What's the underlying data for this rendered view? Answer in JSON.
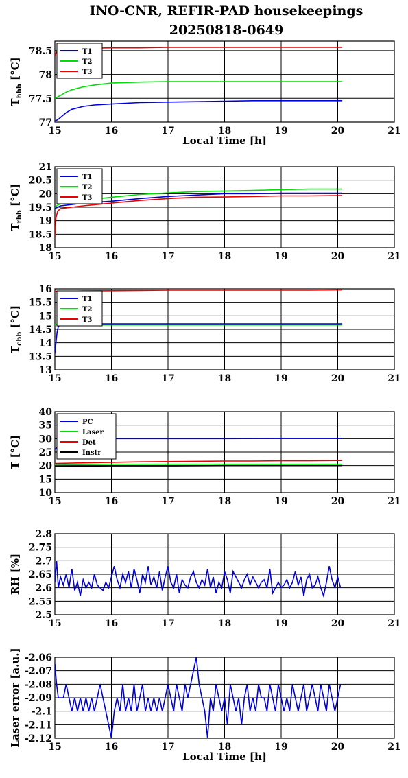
{
  "title_line1": "INO-CNR, REFIR-PAD housekeepings",
  "title_line2": "20250818-0649",
  "chart_data": [
    {
      "type": "line",
      "ylabel": "T",
      "ylabel_sub": "hbb",
      "ylabel_unit": " [°C]",
      "xlabel": "Local Time [h]",
      "xlim": [
        15,
        21
      ],
      "xticks": [
        15,
        16,
        17,
        18,
        19,
        20,
        21
      ],
      "ylim": [
        77,
        78.7
      ],
      "yticks": [
        "77",
        "77.5",
        "78",
        "78.5"
      ],
      "grid": true,
      "legend": "top-left",
      "series": [
        {
          "name": "T1",
          "color": "#0000dd",
          "x": [
            15,
            15.05,
            15.1,
            15.2,
            15.3,
            15.5,
            15.7,
            16,
            16.5,
            17,
            17.5,
            18,
            18.5,
            19,
            19.5,
            20,
            20.08
          ],
          "y": [
            77.02,
            77.05,
            77.1,
            77.2,
            77.27,
            77.33,
            77.36,
            77.38,
            77.41,
            77.42,
            77.43,
            77.44,
            77.45,
            77.45,
            77.45,
            77.45,
            77.45
          ]
        },
        {
          "name": "T2",
          "color": "#00dd00",
          "x": [
            15,
            15.1,
            15.2,
            15.3,
            15.5,
            15.7,
            16,
            16.5,
            17,
            17.5,
            18,
            18.5,
            19,
            19.5,
            20,
            20.08
          ],
          "y": [
            77.5,
            77.56,
            77.63,
            77.68,
            77.74,
            77.78,
            77.82,
            77.84,
            77.85,
            77.85,
            77.85,
            77.85,
            77.85,
            77.85,
            77.85,
            77.85
          ]
        },
        {
          "name": "T3",
          "color": "#ee0000",
          "x": [
            15,
            15.02,
            15.05,
            15.1,
            15.3,
            15.5,
            16,
            16.5,
            17,
            17.5,
            18,
            18.5,
            19,
            19.5,
            20,
            20.08
          ],
          "y": [
            78.38,
            78.45,
            78.5,
            78.52,
            78.54,
            78.55,
            78.56,
            78.56,
            78.57,
            78.57,
            78.57,
            78.57,
            78.57,
            78.57,
            78.57,
            78.57
          ]
        }
      ]
    },
    {
      "type": "line",
      "ylabel": "T",
      "ylabel_sub": "rbb",
      "ylabel_unit": " [°C]",
      "xlabel": "",
      "xlim": [
        15,
        21
      ],
      "xticks": [
        15,
        16,
        17,
        18,
        19,
        20,
        21
      ],
      "ylim": [
        18,
        21
      ],
      "yticks": [
        "18",
        "18.5",
        "19",
        "19.5",
        "20",
        "20.5",
        "21"
      ],
      "grid": true,
      "legend": "top-left",
      "series": [
        {
          "name": "T1",
          "color": "#0000dd",
          "x": [
            15,
            15.05,
            15.1,
            15.3,
            15.5,
            16,
            16.5,
            17,
            17.5,
            18,
            18.5,
            19,
            19.5,
            20,
            20.08
          ],
          "y": [
            19.45,
            19.5,
            19.55,
            19.6,
            19.65,
            19.72,
            19.82,
            19.9,
            19.95,
            20.0,
            20.0,
            20.02,
            20.02,
            20.02,
            20.02
          ]
        },
        {
          "name": "T2",
          "color": "#00dd00",
          "x": [
            15,
            15.05,
            15.1,
            15.3,
            15.5,
            16,
            16.5,
            17,
            17.5,
            18,
            18.5,
            19,
            19.5,
            20,
            20.08
          ],
          "y": [
            19.5,
            19.58,
            19.62,
            19.68,
            19.75,
            19.87,
            19.97,
            20.03,
            20.08,
            20.1,
            20.12,
            20.15,
            20.17,
            20.17,
            20.17
          ]
        },
        {
          "name": "T3",
          "color": "#ee0000",
          "x": [
            15,
            15.02,
            15.05,
            15.1,
            15.3,
            15.5,
            16,
            16.5,
            17,
            17.5,
            18,
            18.5,
            19,
            19.5,
            20,
            20.08
          ],
          "y": [
            18.4,
            19.1,
            19.35,
            19.45,
            19.5,
            19.55,
            19.65,
            19.75,
            19.82,
            19.87,
            19.88,
            19.9,
            19.92,
            19.92,
            19.93,
            19.93
          ]
        }
      ]
    },
    {
      "type": "line",
      "ylabel": "T",
      "ylabel_sub": "cbb",
      "ylabel_unit": " [°C]",
      "xlabel": "",
      "xlim": [
        15,
        21
      ],
      "xticks": [
        15,
        16,
        17,
        18,
        19,
        20,
        21
      ],
      "ylim": [
        13,
        16
      ],
      "yticks": [
        "13",
        "13.5",
        "14",
        "14.5",
        "15",
        "15.5",
        "16"
      ],
      "grid": true,
      "legend": "top-left",
      "series": [
        {
          "name": "T1",
          "color": "#0000dd",
          "x": [
            15,
            15.02,
            15.04,
            15.06,
            15.1,
            15.2,
            15.5,
            16,
            17,
            18,
            19,
            20,
            20.08
          ],
          "y": [
            13.6,
            14.0,
            14.4,
            14.6,
            14.68,
            14.7,
            14.7,
            14.7,
            14.7,
            14.7,
            14.7,
            14.7,
            14.7
          ]
        },
        {
          "name": "T2",
          "color": "#00dd00",
          "x": [
            15,
            15.05,
            15.1,
            15.2,
            15.5,
            16,
            17,
            18,
            19,
            20,
            20.08
          ],
          "y": [
            14.68,
            14.68,
            14.67,
            14.66,
            14.66,
            14.66,
            14.66,
            14.66,
            14.66,
            14.66,
            14.66
          ]
        },
        {
          "name": "T3",
          "color": "#ee0000",
          "x": [
            15,
            15.1,
            15.3,
            15.5,
            16,
            16.5,
            17,
            17.5,
            18,
            18.5,
            19,
            19.5,
            20,
            20.08
          ],
          "y": [
            15.9,
            15.91,
            15.91,
            15.92,
            15.93,
            15.94,
            15.95,
            15.95,
            15.95,
            15.95,
            15.95,
            15.95,
            15.96,
            15.96
          ]
        }
      ]
    },
    {
      "type": "line",
      "ylabel": "T [°C]",
      "xlabel": "",
      "xlim": [
        15,
        21
      ],
      "xticks": [
        15,
        16,
        17,
        18,
        19,
        20,
        21
      ],
      "ylim": [
        10,
        40
      ],
      "yticks": [
        "10",
        "15",
        "20",
        "25",
        "30",
        "35",
        "40"
      ],
      "grid": true,
      "legend": "top-left",
      "series": [
        {
          "name": "PC",
          "color": "#0000dd",
          "x": [
            15,
            15.1,
            15.2,
            15.4,
            15.6,
            16,
            17,
            18,
            19,
            20,
            20.08
          ],
          "y": [
            26,
            28,
            29,
            29.5,
            29.8,
            30,
            30,
            30,
            30.1,
            30.1,
            30.1
          ]
        },
        {
          "name": "Laser",
          "color": "#00dd00",
          "x": [
            15,
            16,
            17,
            18,
            19,
            20,
            20.08
          ],
          "y": [
            20.3,
            20.5,
            20.5,
            20.5,
            20.5,
            20.5,
            20.5
          ]
        },
        {
          "name": "Det",
          "color": "#ee0000",
          "x": [
            15,
            15.5,
            16,
            16.5,
            17,
            17.5,
            18,
            18.5,
            19,
            19.5,
            20,
            20.08
          ],
          "y": [
            20.8,
            21.0,
            21.2,
            21.4,
            21.5,
            21.6,
            21.7,
            21.7,
            21.8,
            21.8,
            21.9,
            21.9
          ]
        },
        {
          "name": "Instr",
          "color": "#000000",
          "x": [
            15,
            16,
            17,
            18,
            19,
            20,
            20.08
          ],
          "y": [
            19.8,
            19.9,
            19.9,
            20,
            20,
            20,
            20
          ]
        }
      ]
    },
    {
      "type": "line",
      "ylabel": "RH [%]",
      "xlabel": "",
      "xlim": [
        15,
        21
      ],
      "xticks": [
        15,
        16,
        17,
        18,
        19,
        20,
        21
      ],
      "ylim": [
        2.5,
        2.8
      ],
      "yticks": [
        "2.5",
        "2.55",
        "2.6",
        "2.65",
        "2.7",
        "2.75",
        "2.8"
      ],
      "grid": true,
      "series": [
        {
          "name": "",
          "color": "#0000dd",
          "x": [
            15,
            15.03,
            15.06,
            15.1,
            15.15,
            15.2,
            15.25,
            15.3,
            15.35,
            15.4,
            15.45,
            15.5,
            15.55,
            15.6,
            15.65,
            15.7,
            15.75,
            15.8,
            15.85,
            15.9,
            15.95,
            16,
            16.05,
            16.1,
            16.15,
            16.2,
            16.25,
            16.3,
            16.35,
            16.4,
            16.45,
            16.5,
            16.55,
            16.6,
            16.65,
            16.7,
            16.75,
            16.8,
            16.85,
            16.9,
            16.95,
            17,
            17.05,
            17.1,
            17.15,
            17.2,
            17.25,
            17.3,
            17.35,
            17.4,
            17.45,
            17.5,
            17.55,
            17.6,
            17.65,
            17.7,
            17.75,
            17.8,
            17.85,
            17.9,
            17.95,
            18,
            18.05,
            18.1,
            18.15,
            18.2,
            18.25,
            18.3,
            18.35,
            18.4,
            18.45,
            18.5,
            18.55,
            18.6,
            18.65,
            18.7,
            18.75,
            18.8,
            18.85,
            18.9,
            18.95,
            19,
            19.05,
            19.1,
            19.15,
            19.2,
            19.25,
            19.3,
            19.35,
            19.4,
            19.45,
            19.5,
            19.55,
            19.6,
            19.65,
            19.7,
            19.75,
            19.8,
            19.85,
            19.9,
            19.95,
            20,
            20.05
          ],
          "y": [
            2.62,
            2.7,
            2.6,
            2.64,
            2.61,
            2.65,
            2.6,
            2.67,
            2.59,
            2.62,
            2.57,
            2.63,
            2.6,
            2.62,
            2.6,
            2.65,
            2.61,
            2.6,
            2.59,
            2.62,
            2.6,
            2.64,
            2.68,
            2.63,
            2.6,
            2.65,
            2.62,
            2.66,
            2.6,
            2.67,
            2.63,
            2.58,
            2.65,
            2.62,
            2.68,
            2.61,
            2.64,
            2.6,
            2.66,
            2.59,
            2.64,
            2.68,
            2.62,
            2.6,
            2.65,
            2.58,
            2.63,
            2.61,
            2.6,
            2.64,
            2.66,
            2.62,
            2.6,
            2.63,
            2.61,
            2.67,
            2.6,
            2.64,
            2.58,
            2.62,
            2.6,
            2.66,
            2.63,
            2.58,
            2.66,
            2.64,
            2.62,
            2.6,
            2.63,
            2.65,
            2.61,
            2.64,
            2.62,
            2.6,
            2.62,
            2.63,
            2.6,
            2.67,
            2.58,
            2.6,
            2.62,
            2.6,
            2.61,
            2.63,
            2.6,
            2.62,
            2.66,
            2.61,
            2.64,
            2.57,
            2.63,
            2.65,
            2.6,
            2.61,
            2.64,
            2.6,
            2.57,
            2.62,
            2.68,
            2.63,
            2.6,
            2.64,
            2.6
          ]
        }
      ]
    },
    {
      "type": "line",
      "ylabel": "Laser error [a.u.]",
      "xlabel": "Local Time [h]",
      "xlim": [
        15,
        21
      ],
      "xticks": [
        15,
        16,
        17,
        18,
        19,
        20,
        21
      ],
      "ylim": [
        -2.12,
        -2.06
      ],
      "yticks": [
        "-2.12",
        "-2.11",
        "-2.1",
        "-2.09",
        "-2.08",
        "-2.07",
        "-2.06"
      ],
      "grid": true,
      "series": [
        {
          "name": "",
          "color": "#0000dd",
          "x": [
            15,
            15.03,
            15.06,
            15.1,
            15.15,
            15.2,
            15.25,
            15.3,
            15.35,
            15.4,
            15.45,
            15.5,
            15.55,
            15.6,
            15.65,
            15.7,
            15.75,
            15.8,
            15.85,
            15.9,
            15.95,
            16,
            16.05,
            16.1,
            16.15,
            16.2,
            16.25,
            16.3,
            16.35,
            16.4,
            16.45,
            16.5,
            16.55,
            16.6,
            16.65,
            16.7,
            16.75,
            16.8,
            16.85,
            16.9,
            16.95,
            17,
            17.05,
            17.1,
            17.15,
            17.2,
            17.25,
            17.3,
            17.35,
            17.4,
            17.45,
            17.5,
            17.55,
            17.6,
            17.65,
            17.7,
            17.75,
            17.8,
            17.85,
            17.9,
            17.95,
            18,
            18.05,
            18.1,
            18.15,
            18.2,
            18.25,
            18.3,
            18.35,
            18.4,
            18.45,
            18.5,
            18.55,
            18.6,
            18.65,
            18.7,
            18.75,
            18.8,
            18.85,
            18.9,
            18.95,
            19,
            19.05,
            19.1,
            19.15,
            19.2,
            19.25,
            19.3,
            19.35,
            19.4,
            19.45,
            19.5,
            19.55,
            19.6,
            19.65,
            19.7,
            19.75,
            19.8,
            19.85,
            19.9,
            19.95,
            20,
            20.05
          ],
          "y": [
            -2.065,
            -2.08,
            -2.09,
            -2.09,
            -2.09,
            -2.08,
            -2.09,
            -2.1,
            -2.09,
            -2.1,
            -2.09,
            -2.1,
            -2.09,
            -2.1,
            -2.09,
            -2.1,
            -2.09,
            -2.08,
            -2.09,
            -2.1,
            -2.11,
            -2.12,
            -2.1,
            -2.09,
            -2.1,
            -2.08,
            -2.1,
            -2.09,
            -2.1,
            -2.08,
            -2.1,
            -2.09,
            -2.08,
            -2.1,
            -2.09,
            -2.1,
            -2.09,
            -2.1,
            -2.09,
            -2.1,
            -2.09,
            -2.08,
            -2.09,
            -2.1,
            -2.08,
            -2.09,
            -2.1,
            -2.08,
            -2.09,
            -2.08,
            -2.07,
            -2.06,
            -2.08,
            -2.09,
            -2.1,
            -2.12,
            -2.09,
            -2.1,
            -2.08,
            -2.09,
            -2.1,
            -2.09,
            -2.11,
            -2.08,
            -2.09,
            -2.1,
            -2.09,
            -2.11,
            -2.09,
            -2.08,
            -2.1,
            -2.09,
            -2.1,
            -2.08,
            -2.09,
            -2.09,
            -2.1,
            -2.08,
            -2.09,
            -2.1,
            -2.08,
            -2.09,
            -2.1,
            -2.09,
            -2.1,
            -2.08,
            -2.09,
            -2.1,
            -2.09,
            -2.08,
            -2.1,
            -2.09,
            -2.08,
            -2.09,
            -2.1,
            -2.08,
            -2.09,
            -2.1,
            -2.08,
            -2.09,
            -2.1,
            -2.09,
            -2.08
          ]
        }
      ]
    }
  ]
}
